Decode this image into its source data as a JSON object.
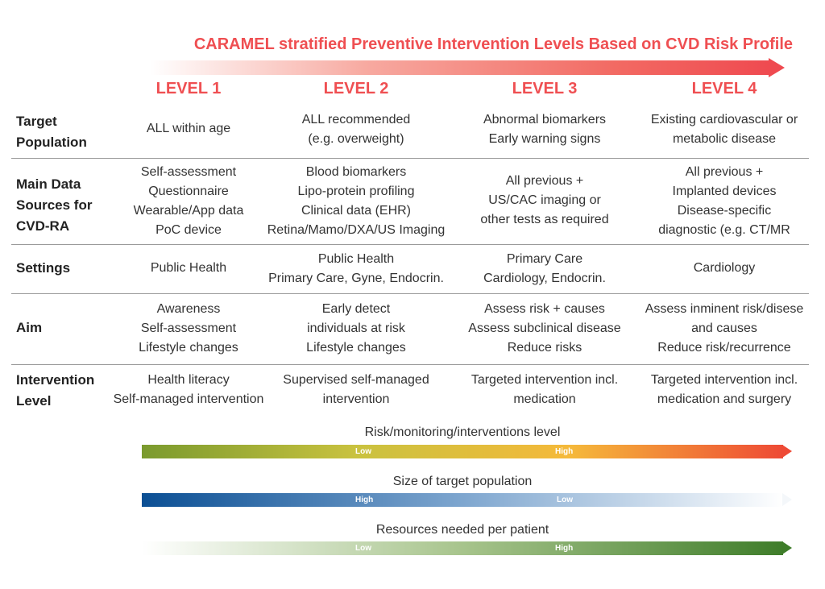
{
  "title": "CARAMEL stratified Preventive Intervention Levels Based on CVD Risk Profile",
  "levels": [
    "LEVEL 1",
    "LEVEL 2",
    "LEVEL 3",
    "LEVEL 4"
  ],
  "rows": {
    "target": {
      "header": [
        "Target",
        "Population"
      ],
      "cells": [
        [
          "ALL within age"
        ],
        [
          "ALL recommended",
          "(e.g. overweight)"
        ],
        [
          "Abnormal biomarkers",
          "Early warning signs"
        ],
        [
          "Existing  cardiovascular or",
          "metabolic disease"
        ]
      ]
    },
    "data_sources": {
      "header": [
        "Main Data",
        "Sources for",
        "CVD-RA"
      ],
      "cells": [
        [
          "Self-assessment",
          "Questionnaire",
          "Wearable/App data",
          "PoC device"
        ],
        [
          "Blood biomarkers",
          "Lipo-protein profiling",
          "Clinical data (EHR)",
          "Retina/Mamo/DXA/US Imaging"
        ],
        [
          "All previous +",
          "US/CAC imaging or",
          "other tests as required"
        ],
        [
          "All previous +",
          "Implanted devices",
          "Disease-specific",
          "diagnostic (e.g. CT/MR"
        ]
      ]
    },
    "settings": {
      "header": [
        "Settings"
      ],
      "cells": [
        [
          "Public Health"
        ],
        [
          "Public Health",
          "Primary Care, Gyne, Endocrin."
        ],
        [
          "Primary Care",
          "Cardiology, Endocrin."
        ],
        [
          "Cardiology"
        ]
      ]
    },
    "aim": {
      "header": [
        "Aim"
      ],
      "cells": [
        [
          "Awareness",
          "Self-assessment",
          "Lifestyle changes"
        ],
        [
          "Early detect",
          "individuals at risk",
          "Lifestyle changes"
        ],
        [
          "Assess risk + causes",
          "Assess subclinical disease",
          "Reduce risks"
        ],
        [
          "Assess inminent risk/disese",
          "and causes",
          "Reduce risk/recurrence"
        ]
      ]
    },
    "intervention": {
      "header": [
        "Intervention",
        "Level"
      ],
      "cells": [
        [
          "Health literacy",
          "Self-managed intervention"
        ],
        [
          "Supervised self-managed",
          "intervention"
        ],
        [
          "Targeted intervention incl.",
          "medication"
        ],
        [
          "Targeted intervention incl.",
          "medication and surgery"
        ]
      ]
    }
  },
  "scales": [
    {
      "label": "Risk/monitoring/interventions level",
      "ticks": [
        "Low",
        "High"
      ],
      "colors": [
        "#7a9a2e",
        "#c9c23f",
        "#f5b93a",
        "#ee4a35"
      ]
    },
    {
      "label": "Size of target population",
      "ticks": [
        "High",
        "Low"
      ],
      "colors": [
        "#0b4f94",
        "#7ea6cf",
        "#ffffff"
      ]
    },
    {
      "label": "Resources needed per patient",
      "ticks": [
        "Low",
        "High"
      ],
      "colors": [
        "#ffffff",
        "#a7c48c",
        "#3f7d2a"
      ]
    }
  ]
}
